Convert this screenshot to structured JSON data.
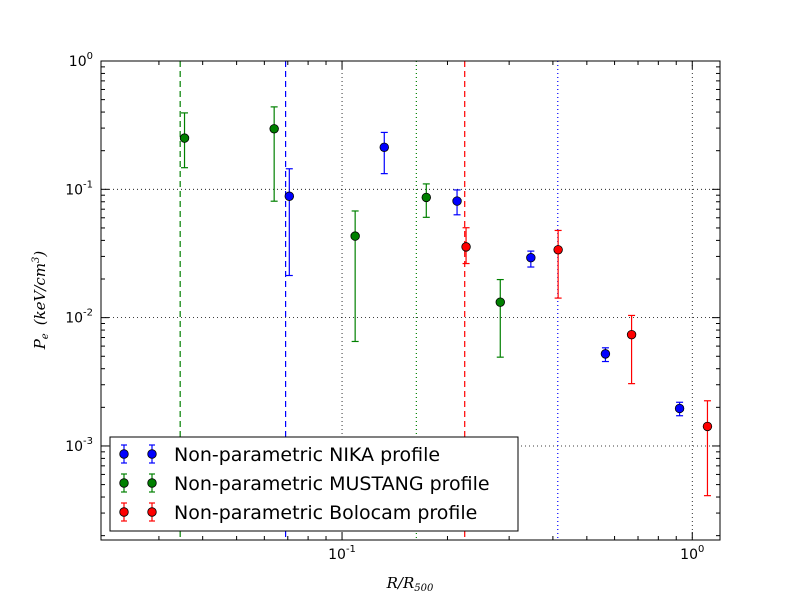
{
  "chart_data": {
    "type": "scatter",
    "xscale": "log",
    "yscale": "log",
    "xlim": [
      0.0205,
      1.2
    ],
    "ylim": [
      0.000185,
      1.0
    ],
    "xlabel_main": "R/R",
    "xlabel_sub": "500",
    "ylabel_main": "P",
    "ylabel_sub": "e",
    "ylabel_unit": "(keV/cm",
    "ylabel_unit_sup": "3",
    "ylabel_unit_close": ")",
    "grid": true,
    "legend_position": "lower-left",
    "xticks": [
      {
        "value": 0.1,
        "base": "10",
        "exp": "-1"
      },
      {
        "value": 1,
        "base": "10",
        "exp": "0"
      }
    ],
    "yticks": [
      {
        "value": 1,
        "base": "10",
        "exp": "0"
      },
      {
        "value": 0.1,
        "base": "10",
        "exp": "-1"
      },
      {
        "value": 0.01,
        "base": "10",
        "exp": "-2"
      },
      {
        "value": 0.001,
        "base": "10",
        "exp": "-3"
      }
    ],
    "vlines": [
      {
        "x": 0.0345,
        "color": "#008000",
        "style": "dashed"
      },
      {
        "x": 0.069,
        "color": "#0000ff",
        "style": "dashed"
      },
      {
        "x": 0.163,
        "color": "#008000",
        "style": "dotted"
      },
      {
        "x": 0.224,
        "color": "#ff0000",
        "style": "dashed"
      },
      {
        "x": 0.413,
        "color": "#0000ff",
        "style": "dotted"
      }
    ],
    "series": [
      {
        "name": "Non-parametric NIKA profile",
        "color": "#0000ff",
        "points": [
          {
            "x": 0.0707,
            "y": 0.0883,
            "lo": 0.0213,
            "hi": 0.1446
          },
          {
            "x": 0.132,
            "y": 0.2126,
            "lo": 0.1325,
            "hi": 0.2776
          },
          {
            "x": 0.213,
            "y": 0.081,
            "lo": 0.0633,
            "hi": 0.0989
          },
          {
            "x": 0.346,
            "y": 0.0293,
            "lo": 0.0248,
            "hi": 0.033
          },
          {
            "x": 0.565,
            "y": 0.00522,
            "lo": 0.00455,
            "hi": 0.00582
          },
          {
            "x": 0.92,
            "y": 0.00196,
            "lo": 0.00172,
            "hi": 0.00219
          }
        ]
      },
      {
        "name": "Non-parametric MUSTANG profile",
        "color": "#008000",
        "points": [
          {
            "x": 0.0355,
            "y": 0.2507,
            "lo": 0.1474,
            "hi": 0.394
          },
          {
            "x": 0.064,
            "y": 0.2964,
            "lo": 0.0808,
            "hi": 0.439
          },
          {
            "x": 0.109,
            "y": 0.0432,
            "lo": 0.00652,
            "hi": 0.0678
          },
          {
            "x": 0.174,
            "y": 0.0865,
            "lo": 0.0605,
            "hi": 0.1102
          },
          {
            "x": 0.283,
            "y": 0.0132,
            "lo": 0.00492,
            "hi": 0.0198
          }
        ]
      },
      {
        "name": "Non-parametric Bolocam profile",
        "color": "#ff0000",
        "points": [
          {
            "x": 0.226,
            "y": 0.0356,
            "lo": 0.0264,
            "hi": 0.0502
          },
          {
            "x": 0.414,
            "y": 0.0338,
            "lo": 0.0142,
            "hi": 0.0478
          },
          {
            "x": 0.671,
            "y": 0.00737,
            "lo": 0.00306,
            "hi": 0.0104
          },
          {
            "x": 1.105,
            "y": 0.00142,
            "lo": 0.00041,
            "hi": 0.00225
          }
        ]
      }
    ]
  }
}
